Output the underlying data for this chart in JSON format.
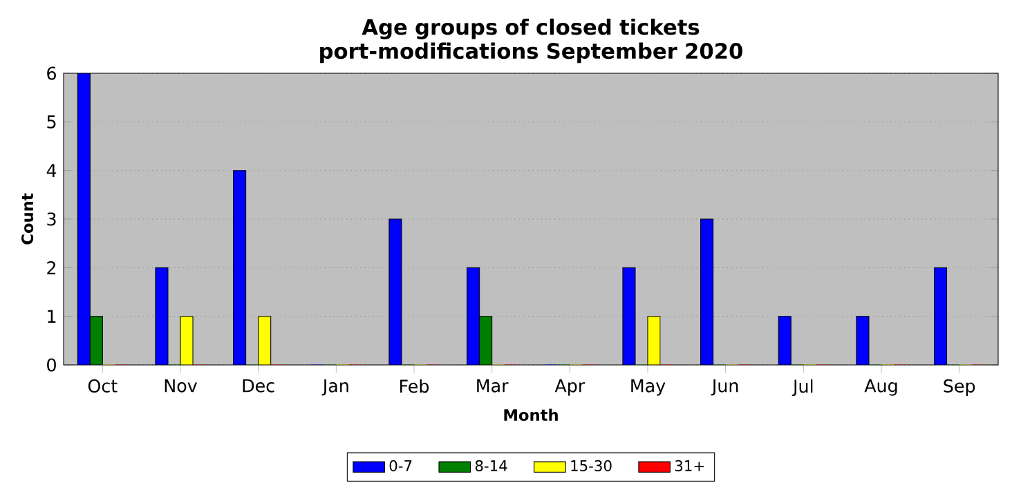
{
  "chart_data": {
    "type": "bar",
    "title": "Age groups of closed tickets\nport-modifications September 2020",
    "xlabel": "Month",
    "ylabel": "Count",
    "categories": [
      "Oct",
      "Nov",
      "Dec",
      "Jan",
      "Feb",
      "Mar",
      "Apr",
      "May",
      "Jun",
      "Jul",
      "Aug",
      "Sep"
    ],
    "series": [
      {
        "name": "0-7",
        "color": "#0000ff",
        "values": [
          6,
          2,
          4,
          0,
          3,
          2,
          0,
          2,
          3,
          1,
          1,
          2
        ]
      },
      {
        "name": "8-14",
        "color": "#008000",
        "values": [
          1,
          0,
          0,
          0,
          0,
          1,
          0,
          0,
          0,
          0,
          0,
          0
        ]
      },
      {
        "name": "15-30",
        "color": "#ffff00",
        "values": [
          0,
          1,
          1,
          0,
          0,
          0,
          0,
          1,
          0,
          0,
          0,
          0
        ]
      },
      {
        "name": "31+",
        "color": "#ff0000",
        "values": [
          0,
          0,
          0,
          0,
          0,
          0,
          0,
          0,
          0,
          0,
          0,
          0
        ]
      }
    ],
    "ylim": [
      0,
      6
    ],
    "yticks": [
      0,
      1,
      2,
      3,
      4,
      5,
      6
    ],
    "grid": "y",
    "legend": "bottom"
  }
}
